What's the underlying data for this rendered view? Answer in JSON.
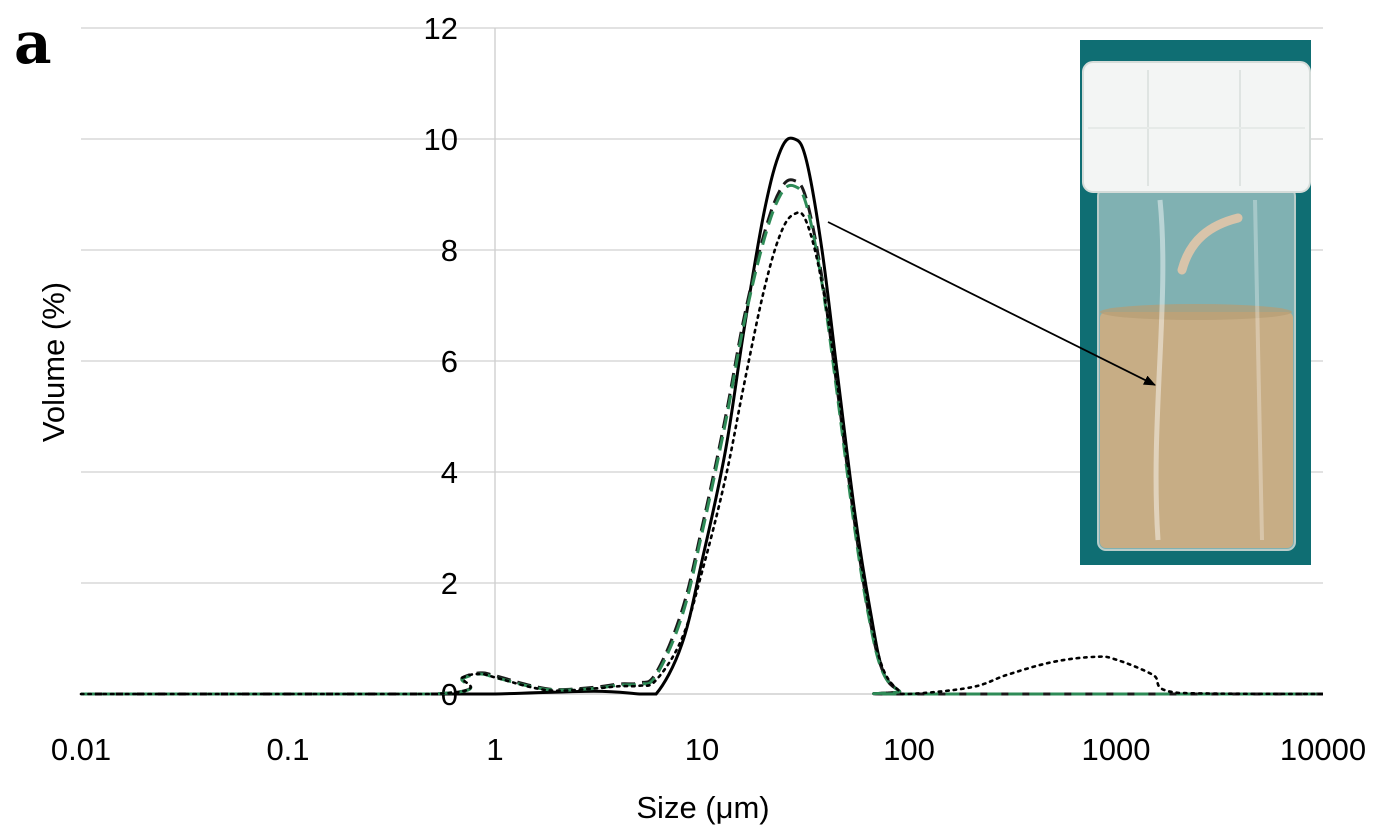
{
  "panel_label": "a",
  "chart_data": {
    "type": "line",
    "xlabel": "Size (μm)",
    "ylabel": "Volume (%)",
    "xscale": "log",
    "xlim": [
      0.01,
      10000
    ],
    "ylim": [
      0,
      12
    ],
    "x_ticks": [
      "0.01",
      "0.1",
      "1",
      "10",
      "100",
      "1000",
      "10000"
    ],
    "y_ticks": [
      "0",
      "2",
      "4",
      "6",
      "8",
      "10",
      "12"
    ],
    "grid": true,
    "legend": "none",
    "series": [
      {
        "style": "solid",
        "color": "#000000",
        "x": [
          0.01,
          0.5,
          1,
          3,
          5,
          6,
          8,
          10,
          13,
          16,
          20,
          24,
          28,
          32,
          38,
          45,
          55,
          65,
          75,
          90,
          100,
          10000
        ],
        "y": [
          0,
          0,
          0,
          0.05,
          0,
          0,
          0.9,
          2.4,
          4.4,
          6.6,
          8.7,
          9.8,
          10.0,
          9.6,
          8.0,
          5.8,
          3.2,
          1.5,
          0.4,
          0.05,
          0,
          0
        ]
      },
      {
        "style": "dashed",
        "color": "#1a1a1a",
        "x": [
          0.01,
          0.5,
          0.7,
          0.85,
          1,
          1.5,
          2,
          3,
          4,
          5,
          6,
          8,
          10,
          13,
          16,
          20,
          24,
          28,
          32,
          38,
          45,
          55,
          65,
          75,
          90,
          100,
          10000
        ],
        "y": [
          0,
          0,
          0.3,
          0.38,
          0.33,
          0.15,
          0.08,
          0.12,
          0.18,
          0.2,
          0.38,
          1.5,
          3.0,
          5.0,
          6.8,
          8.3,
          9.1,
          9.25,
          8.9,
          7.5,
          5.5,
          3.0,
          1.3,
          0.4,
          0.05,
          0,
          0
        ]
      },
      {
        "style": "dashed",
        "color": "#2e8b57",
        "x": [
          0.01,
          0.5,
          0.7,
          0.85,
          1,
          1.5,
          2,
          3,
          4,
          5,
          6,
          8,
          10,
          13,
          16,
          20,
          24,
          28,
          32,
          38,
          45,
          55,
          65,
          75,
          90,
          100,
          10000
        ],
        "y": [
          0,
          0,
          0.28,
          0.36,
          0.3,
          0.13,
          0.07,
          0.1,
          0.16,
          0.18,
          0.33,
          1.4,
          2.9,
          4.9,
          6.7,
          8.2,
          9.0,
          9.15,
          8.8,
          7.4,
          5.4,
          2.9,
          1.25,
          0.38,
          0.05,
          0,
          0
        ]
      },
      {
        "style": "dotted",
        "color": "#000000",
        "x": [
          0.01,
          0.5,
          0.7,
          0.85,
          1,
          1.5,
          2,
          3,
          4,
          5,
          6,
          8,
          10,
          13,
          16,
          20,
          24,
          28,
          32,
          38,
          45,
          55,
          65,
          75,
          90,
          100,
          200,
          300,
          500,
          800,
          1000,
          1500,
          2000,
          10000
        ],
        "y": [
          0,
          0,
          0.3,
          0.36,
          0.3,
          0.12,
          0.06,
          0.1,
          0.14,
          0.15,
          0.25,
          1.0,
          2.2,
          3.9,
          5.6,
          7.3,
          8.3,
          8.65,
          8.5,
          7.4,
          5.6,
          3.1,
          1.4,
          0.45,
          0.05,
          0,
          0.12,
          0.35,
          0.58,
          0.67,
          0.62,
          0.35,
          0.02,
          0
        ]
      }
    ]
  },
  "inset": {
    "photo_bg": "#0f6e73",
    "cap_color": "#f3f5f4",
    "liquid_color": "#c7ad85"
  }
}
